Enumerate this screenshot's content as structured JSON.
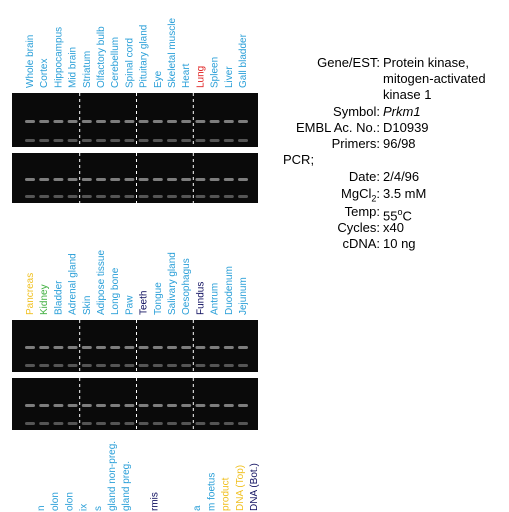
{
  "groups": [
    {
      "labels": [
        "Whole brain",
        "Cortex",
        "Hippocampus",
        "Mid brain",
        "Striatum",
        "Olfactory bulb",
        "Cerebellum",
        "Spinal cord",
        "Pituitary gland",
        "Eye",
        "Skeletal muscle",
        "Heart",
        "Lung",
        "Spleen",
        "Liver",
        "Gall bladder"
      ],
      "label_colors": [
        "#2a9fd8",
        "#2a9fd8",
        "#2a9fd8",
        "#2a9fd8",
        "#2a9fd8",
        "#2a9fd8",
        "#2a9fd8",
        "#2a9fd8",
        "#2a9fd8",
        "#2a9fd8",
        "#2a9fd8",
        "#2a9fd8",
        "#e02020",
        "#2a9fd8",
        "#2a9fd8",
        "#2a9fd8"
      ]
    },
    {
      "labels": [
        "Pancreas",
        "Kidney",
        "Bladder",
        "Adrenal gland",
        "Skin",
        "Adipose tissue",
        "Long bone",
        "Paw",
        "Teeth",
        "Tongue",
        "Salivary gland",
        "Oesophagus",
        "Fundus",
        "Antrum",
        "Duodenum",
        "Jejunum"
      ],
      "label_colors": [
        "#f0c020",
        "#40b040",
        "#2a9fd8",
        "#2a9fd8",
        "#2a9fd8",
        "#2a9fd8",
        "#2a9fd8",
        "#2a9fd8",
        "#101060",
        "#2a9fd8",
        "#2a9fd8",
        "#2a9fd8",
        "#101060",
        "#2a9fd8",
        "#2a9fd8",
        "#2a9fd8"
      ]
    },
    {
      "labels": [
        "n",
        "olon",
        "olon",
        "ix",
        "s",
        "gland non-preg.",
        "gland preg.",
        null,
        "rmis",
        null,
        null,
        "a",
        "m foetus",
        "product",
        "DNA (Top)",
        "DNA (Bot.)"
      ],
      "label_colors": [
        "#2a9fd8",
        "#2a9fd8",
        "#2a9fd8",
        "#2a9fd8",
        "#2a9fd8",
        "#2a9fd8",
        "#2a9fd8",
        "#2a9fd8",
        "#101060",
        "#2a9fd8",
        "#2a9fd8",
        "#2a9fd8",
        "#2a9fd8",
        "#f0c020",
        "#f0c020",
        "#101060"
      ]
    }
  ],
  "info": {
    "gene": {
      "key": "Gene/EST:",
      "lines": [
        "Protein kinase,",
        "mitogen-activated",
        "kinase 1"
      ]
    },
    "symbol": {
      "key": "Symbol:",
      "value": "Prkm1"
    },
    "embl": {
      "key": "EMBL Ac. No.:",
      "value": "D10939"
    },
    "primers": {
      "key": "Primers:",
      "value": "96/98"
    },
    "pcr": "PCR;",
    "date": {
      "key": "Date:",
      "value": "2/4/96"
    },
    "mgcl": {
      "key": "MgCl",
      "key_sub": "2",
      "key_end": ":",
      "value": "3.5 mM"
    },
    "temp": {
      "key": "Temp:",
      "value": "55",
      "value_sup": "o",
      "value_end": "C"
    },
    "cycles": {
      "key": "Cycles:",
      "value": "x40"
    },
    "cdna": {
      "key": "cDNA:",
      "value": "10 ng"
    }
  }
}
